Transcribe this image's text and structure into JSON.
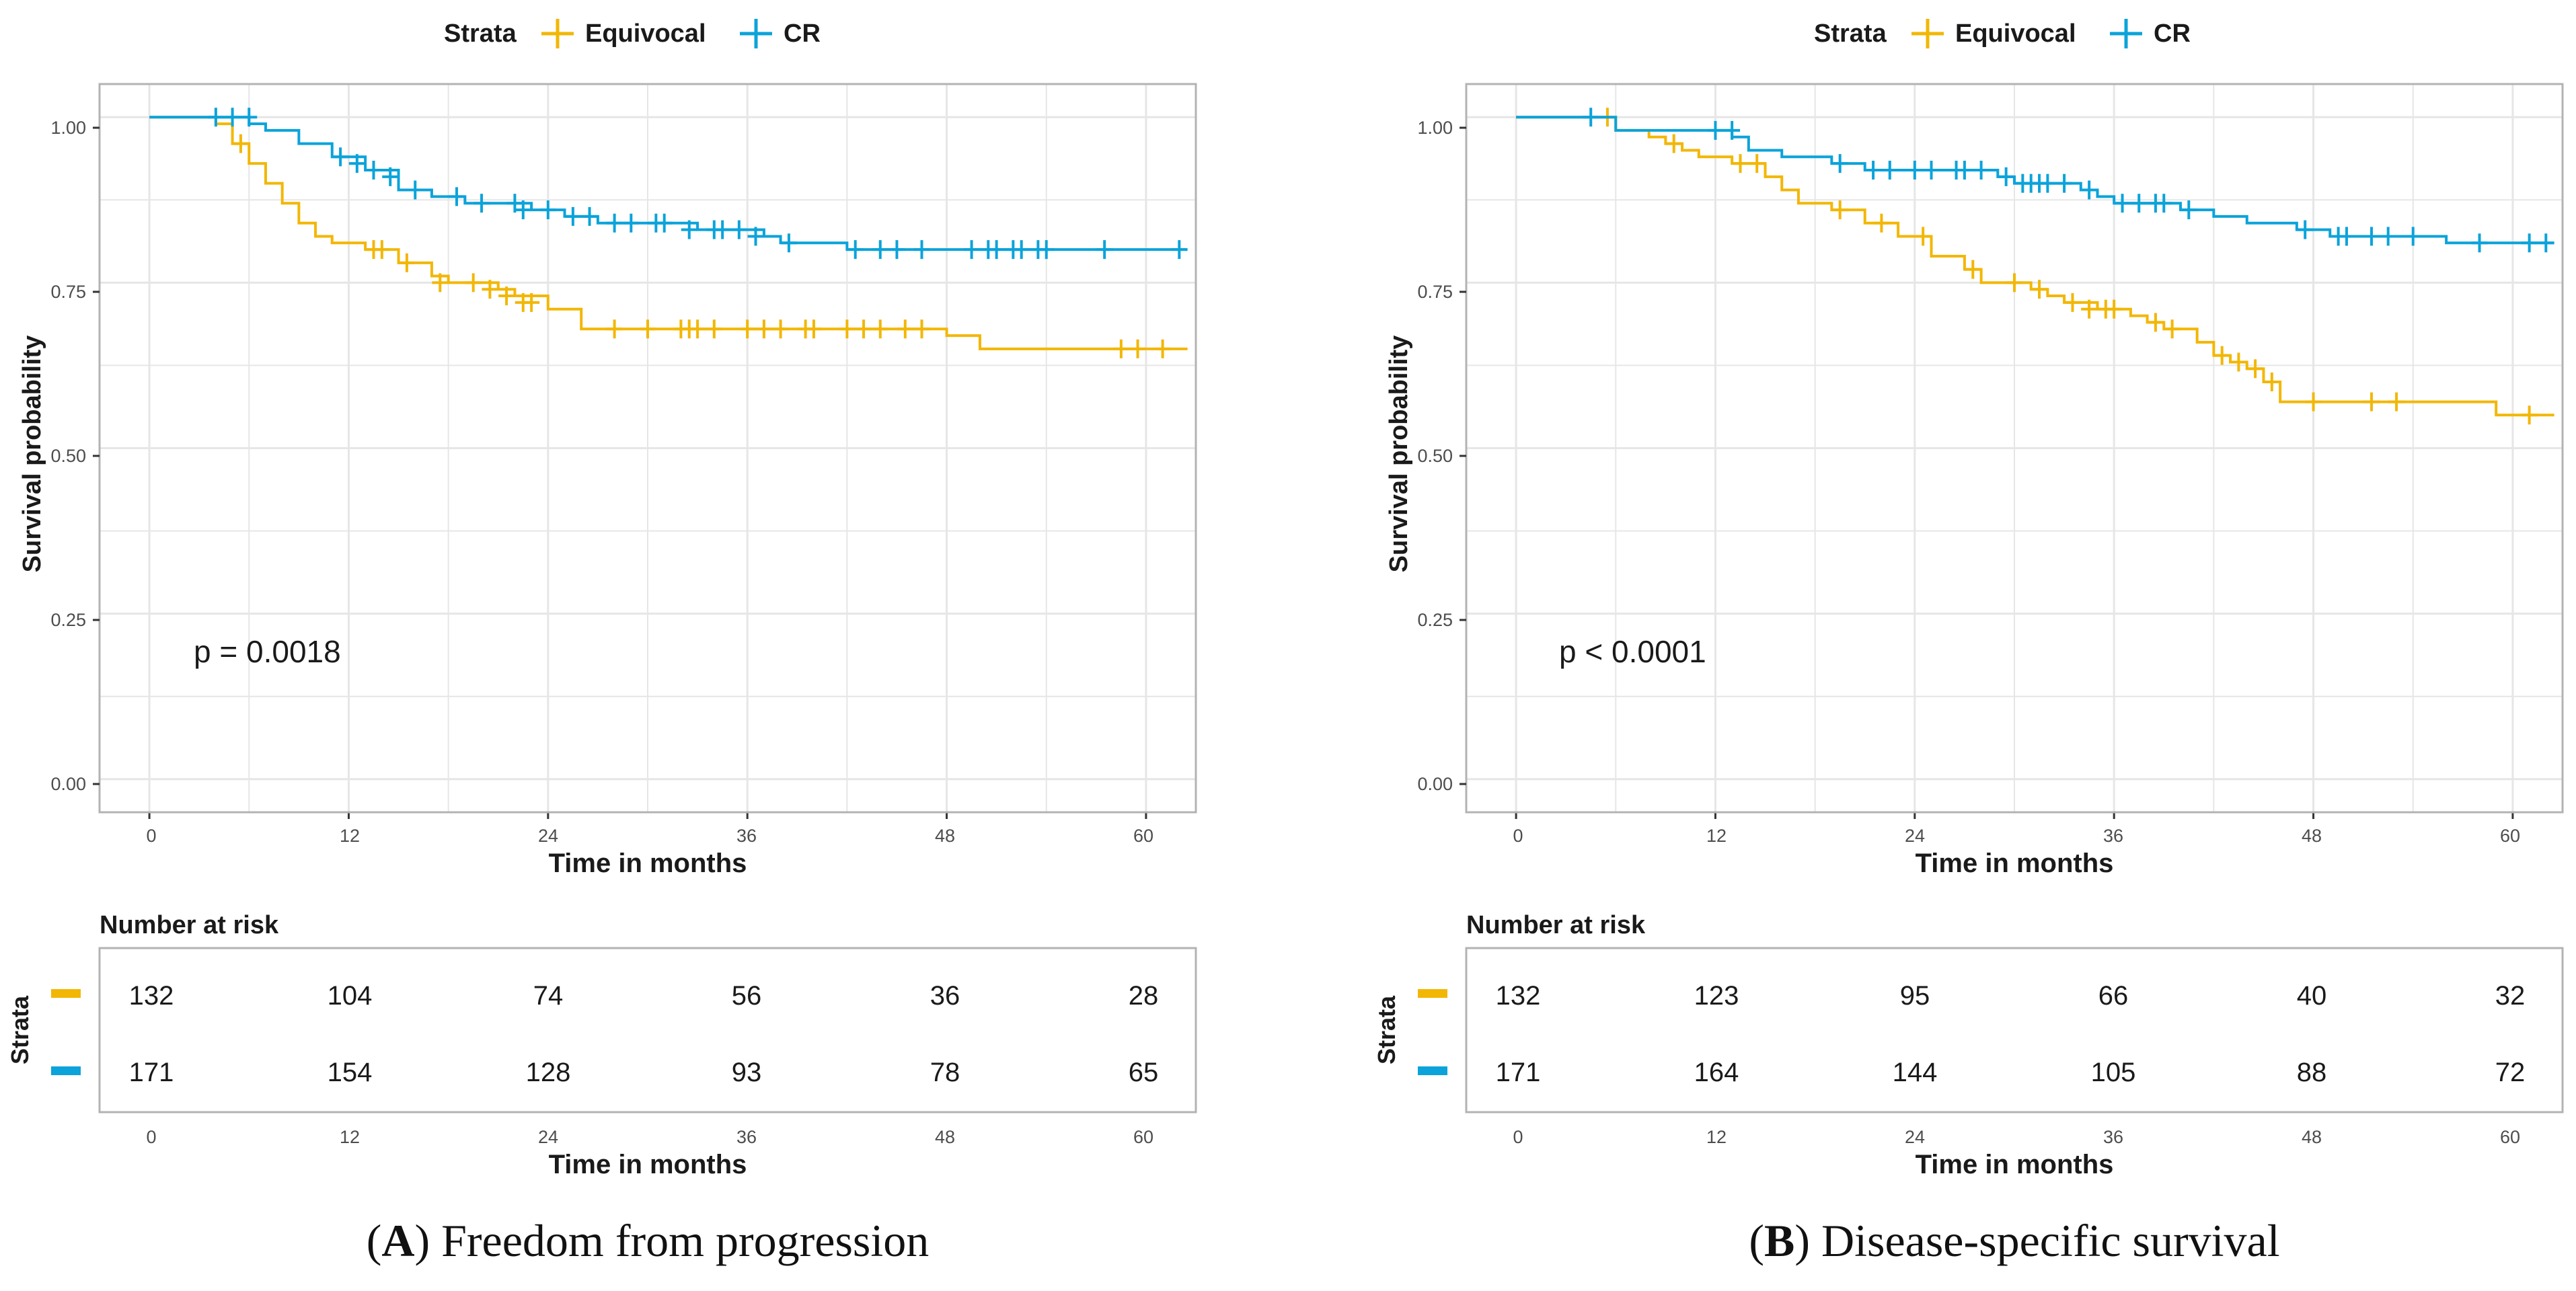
{
  "figure": {
    "panels": [
      {
        "letter": "A",
        "caption_rest": ") Freedom from progression",
        "p_text": "p = 0.0018"
      },
      {
        "letter": "B",
        "caption_rest": ") Disease-specific survival",
        "p_text": "p < 0.0001"
      }
    ],
    "caption_open": "("
  },
  "legend": {
    "title": "Strata",
    "items": [
      "Equivocal",
      "CR"
    ]
  },
  "colors": {
    "equivocal": "#F2B705",
    "cr": "#0BA3DA",
    "grid": "#e6e6e6",
    "panel_border": "#b3b3b3"
  },
  "risk_table": {
    "title": "Number at risk",
    "ylabel": "Strata"
  },
  "chart_data": [
    {
      "type": "line",
      "title": "Freedom from progression",
      "xlabel": "Time in months",
      "ylabel": "Survival probability",
      "xlim": [
        -3,
        63
      ],
      "ylim": [
        -0.05,
        1.05
      ],
      "xticks": [
        0,
        12,
        24,
        36,
        48,
        60
      ],
      "yticks": [
        0,
        0.25,
        0.5,
        0.75,
        1.0
      ],
      "ytick_labels": [
        "0.00",
        "0.25",
        "0.50",
        "0.75",
        "1.00"
      ],
      "annotation": "p = 0.0018",
      "series": [
        {
          "name": "Equivocal",
          "color": "#F2B705",
          "steps": [
            [
              0,
              1.0
            ],
            [
              4,
              0.99
            ],
            [
              5,
              0.96
            ],
            [
              6,
              0.93
            ],
            [
              7,
              0.9
            ],
            [
              8,
              0.87
            ],
            [
              9,
              0.84
            ],
            [
              10,
              0.82
            ],
            [
              11,
              0.81
            ],
            [
              13,
              0.8
            ],
            [
              15,
              0.78
            ],
            [
              17,
              0.76
            ],
            [
              18,
              0.75
            ],
            [
              21,
              0.74
            ],
            [
              22,
              0.73
            ],
            [
              24,
              0.71
            ],
            [
              26,
              0.68
            ],
            [
              48,
              0.67
            ],
            [
              50,
              0.65
            ],
            [
              62.5,
              0.65
            ]
          ],
          "censors": [
            [
              5.5,
              0.96
            ],
            [
              13.5,
              0.8
            ],
            [
              14,
              0.8
            ],
            [
              15.5,
              0.78
            ],
            [
              17.5,
              0.75
            ],
            [
              19.5,
              0.75
            ],
            [
              20.5,
              0.74
            ],
            [
              21.5,
              0.73
            ],
            [
              22.5,
              0.72
            ],
            [
              23,
              0.72
            ],
            [
              28,
              0.68
            ],
            [
              30,
              0.68
            ],
            [
              32,
              0.68
            ],
            [
              32.5,
              0.68
            ],
            [
              33,
              0.68
            ],
            [
              34,
              0.68
            ],
            [
              36,
              0.68
            ],
            [
              37,
              0.68
            ],
            [
              38,
              0.68
            ],
            [
              39.5,
              0.68
            ],
            [
              40,
              0.68
            ],
            [
              42,
              0.68
            ],
            [
              43,
              0.68
            ],
            [
              44,
              0.68
            ],
            [
              45.5,
              0.68
            ],
            [
              46.5,
              0.68
            ],
            [
              58.5,
              0.65
            ],
            [
              59.5,
              0.65
            ],
            [
              61,
              0.65
            ]
          ]
        },
        {
          "name": "CR",
          "color": "#0BA3DA",
          "steps": [
            [
              0,
              1.0
            ],
            [
              6,
              0.99
            ],
            [
              7,
              0.98
            ],
            [
              9,
              0.96
            ],
            [
              11,
              0.94
            ],
            [
              13,
              0.92
            ],
            [
              15,
              0.89
            ],
            [
              17,
              0.88
            ],
            [
              19,
              0.87
            ],
            [
              23,
              0.86
            ],
            [
              25,
              0.85
            ],
            [
              27,
              0.84
            ],
            [
              33,
              0.83
            ],
            [
              37,
              0.82
            ],
            [
              38,
              0.81
            ],
            [
              42,
              0.8
            ],
            [
              62.5,
              0.8
            ]
          ],
          "censors": [
            [
              4,
              1.0
            ],
            [
              5,
              1.0
            ],
            [
              6,
              1.0
            ],
            [
              11.5,
              0.94
            ],
            [
              12.5,
              0.93
            ],
            [
              13.5,
              0.92
            ],
            [
              14.5,
              0.91
            ],
            [
              16,
              0.89
            ],
            [
              18.5,
              0.88
            ],
            [
              20,
              0.87
            ],
            [
              22,
              0.87
            ],
            [
              22.5,
              0.86
            ],
            [
              24,
              0.86
            ],
            [
              25.5,
              0.85
            ],
            [
              26.5,
              0.85
            ],
            [
              28,
              0.84
            ],
            [
              29,
              0.84
            ],
            [
              30.5,
              0.84
            ],
            [
              31,
              0.84
            ],
            [
              32.5,
              0.83
            ],
            [
              34,
              0.83
            ],
            [
              34.5,
              0.83
            ],
            [
              35.5,
              0.83
            ],
            [
              36.5,
              0.82
            ],
            [
              38.5,
              0.81
            ],
            [
              42.5,
              0.8
            ],
            [
              44,
              0.8
            ],
            [
              45,
              0.8
            ],
            [
              46.5,
              0.8
            ],
            [
              49.5,
              0.8
            ],
            [
              50.5,
              0.8
            ],
            [
              51,
              0.8
            ],
            [
              52,
              0.8
            ],
            [
              52.5,
              0.8
            ],
            [
              53.5,
              0.8
            ],
            [
              54,
              0.8
            ],
            [
              57.5,
              0.8
            ],
            [
              62,
              0.8
            ]
          ]
        }
      ],
      "risk_table": {
        "time_points": [
          0,
          12,
          24,
          36,
          48,
          60
        ],
        "rows": [
          {
            "name": "Equivocal",
            "color": "#F2B705",
            "values": [
              "132",
              "104",
              "74",
              "56",
              "36",
              "28"
            ]
          },
          {
            "name": "CR",
            "color": "#0BA3DA",
            "values": [
              "171",
              "154",
              "128",
              "93",
              "78",
              "65"
            ]
          }
        ]
      }
    },
    {
      "type": "line",
      "title": "Disease-specific survival",
      "xlabel": "Time in months",
      "ylabel": "Survival probability",
      "xlim": [
        -3,
        63
      ],
      "ylim": [
        -0.05,
        1.05
      ],
      "xticks": [
        0,
        12,
        24,
        36,
        48,
        60
      ],
      "yticks": [
        0,
        0.25,
        0.5,
        0.75,
        1.0
      ],
      "ytick_labels": [
        "0.00",
        "0.25",
        "0.50",
        "0.75",
        "1.00"
      ],
      "annotation": "p < 0.0001",
      "series": [
        {
          "name": "Equivocal",
          "color": "#F2B705",
          "steps": [
            [
              0,
              1.0
            ],
            [
              6,
              0.98
            ],
            [
              8,
              0.97
            ],
            [
              9,
              0.96
            ],
            [
              10,
              0.95
            ],
            [
              11,
              0.94
            ],
            [
              13,
              0.93
            ],
            [
              15,
              0.91
            ],
            [
              16,
              0.89
            ],
            [
              17,
              0.87
            ],
            [
              19,
              0.86
            ],
            [
              21,
              0.84
            ],
            [
              23,
              0.82
            ],
            [
              25,
              0.79
            ],
            [
              27,
              0.77
            ],
            [
              28,
              0.75
            ],
            [
              31,
              0.74
            ],
            [
              32,
              0.73
            ],
            [
              33,
              0.72
            ],
            [
              35,
              0.71
            ],
            [
              37,
              0.7
            ],
            [
              38,
              0.69
            ],
            [
              39,
              0.68
            ],
            [
              41,
              0.66
            ],
            [
              42,
              0.64
            ],
            [
              43,
              0.63
            ],
            [
              44,
              0.62
            ],
            [
              45,
              0.6
            ],
            [
              46,
              0.57
            ],
            [
              59,
              0.55
            ],
            [
              62.5,
              0.55
            ]
          ],
          "censors": [
            [
              5.5,
              1.0
            ],
            [
              9.5,
              0.96
            ],
            [
              13.5,
              0.93
            ],
            [
              14.5,
              0.93
            ],
            [
              19.5,
              0.86
            ],
            [
              22,
              0.84
            ],
            [
              24.5,
              0.82
            ],
            [
              27.5,
              0.77
            ],
            [
              30,
              0.75
            ],
            [
              31.5,
              0.74
            ],
            [
              33.5,
              0.72
            ],
            [
              34.5,
              0.71
            ],
            [
              35.5,
              0.71
            ],
            [
              36,
              0.71
            ],
            [
              38.5,
              0.69
            ],
            [
              39.5,
              0.68
            ],
            [
              42.5,
              0.64
            ],
            [
              43.5,
              0.63
            ],
            [
              44.5,
              0.62
            ],
            [
              45.5,
              0.6
            ],
            [
              48,
              0.57
            ],
            [
              51.5,
              0.57
            ],
            [
              53,
              0.57
            ],
            [
              61,
              0.55
            ]
          ]
        },
        {
          "name": "CR",
          "color": "#0BA3DA",
          "steps": [
            [
              0,
              1.0
            ],
            [
              6,
              0.98
            ],
            [
              13,
              0.97
            ],
            [
              14,
              0.95
            ],
            [
              16,
              0.94
            ],
            [
              19,
              0.93
            ],
            [
              21,
              0.92
            ],
            [
              29,
              0.91
            ],
            [
              30,
              0.9
            ],
            [
              34,
              0.89
            ],
            [
              35,
              0.88
            ],
            [
              36,
              0.87
            ],
            [
              40,
              0.86
            ],
            [
              42,
              0.85
            ],
            [
              44,
              0.84
            ],
            [
              47,
              0.83
            ],
            [
              49,
              0.82
            ],
            [
              56,
              0.81
            ],
            [
              62.5,
              0.81
            ]
          ],
          "censors": [
            [
              4.5,
              1.0
            ],
            [
              12,
              0.98
            ],
            [
              13,
              0.98
            ],
            [
              19.5,
              0.93
            ],
            [
              21.5,
              0.92
            ],
            [
              22.5,
              0.92
            ],
            [
              24,
              0.92
            ],
            [
              25,
              0.92
            ],
            [
              26.5,
              0.92
            ],
            [
              27,
              0.92
            ],
            [
              28,
              0.92
            ],
            [
              29.5,
              0.91
            ],
            [
              30.5,
              0.9
            ],
            [
              31,
              0.9
            ],
            [
              31.5,
              0.9
            ],
            [
              32,
              0.9
            ],
            [
              33,
              0.9
            ],
            [
              34.5,
              0.89
            ],
            [
              36.5,
              0.87
            ],
            [
              37.5,
              0.87
            ],
            [
              38.5,
              0.87
            ],
            [
              39,
              0.87
            ],
            [
              40.5,
              0.86
            ],
            [
              47.5,
              0.83
            ],
            [
              49.5,
              0.82
            ],
            [
              50,
              0.82
            ],
            [
              51.5,
              0.82
            ],
            [
              52.5,
              0.82
            ],
            [
              54,
              0.82
            ],
            [
              58,
              0.81
            ],
            [
              61,
              0.81
            ],
            [
              62,
              0.81
            ]
          ]
        }
      ],
      "risk_table": {
        "time_points": [
          0,
          12,
          24,
          36,
          48,
          60
        ],
        "rows": [
          {
            "name": "Equivocal",
            "color": "#F2B705",
            "values": [
              "132",
              "123",
              "95",
              "66",
              "40",
              "32"
            ]
          },
          {
            "name": "CR",
            "color": "#0BA3DA",
            "values": [
              "171",
              "164",
              "144",
              "105",
              "88",
              "72"
            ]
          }
        ]
      }
    }
  ]
}
